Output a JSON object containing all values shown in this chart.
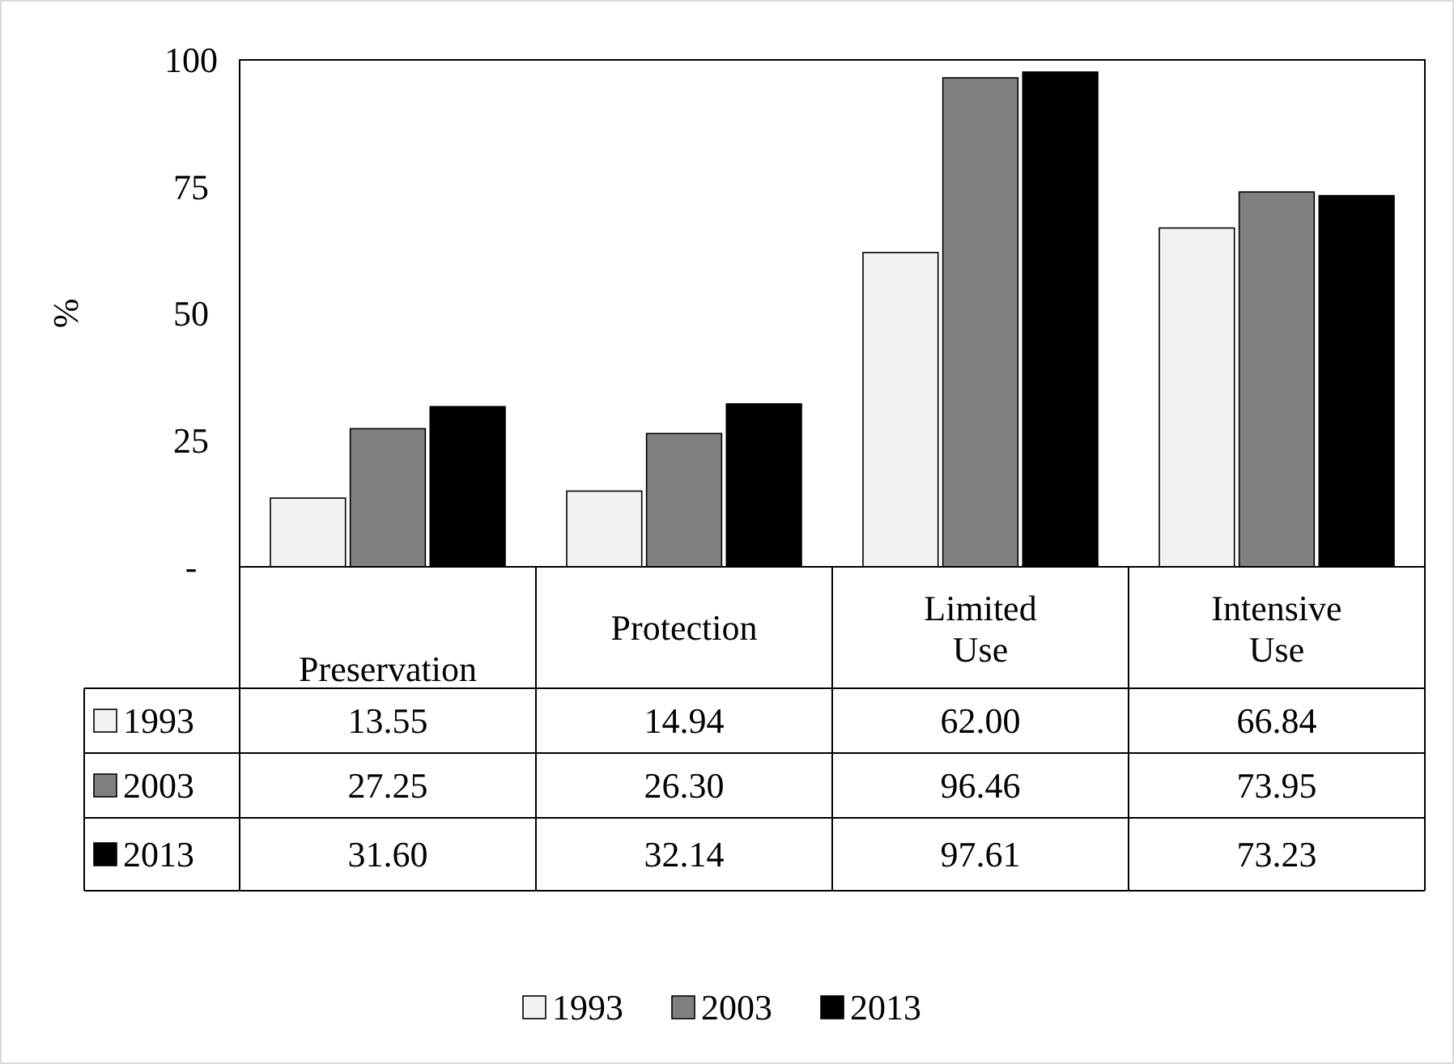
{
  "chart_data": {
    "type": "bar",
    "ylabel": "%",
    "categories": [
      "Preservation",
      "Protection",
      "Limited Use",
      "Intensive Use"
    ],
    "series": [
      {
        "name": "1993",
        "color": "#f2f2f2",
        "values": [
          13.55,
          14.94,
          62.0,
          66.84
        ],
        "value_labels": [
          "13.55",
          "14.94",
          "62.00",
          "66.84"
        ]
      },
      {
        "name": "2003",
        "color": "#808080",
        "values": [
          27.25,
          26.3,
          96.46,
          73.95
        ],
        "value_labels": [
          "27.25",
          "26.30",
          "96.46",
          "73.95"
        ]
      },
      {
        "name": "2013",
        "color": "#000000",
        "values": [
          31.6,
          32.14,
          97.61,
          73.23
        ],
        "value_labels": [
          "31.60",
          "32.14",
          "97.61",
          "73.23"
        ]
      }
    ],
    "ylim": [
      0,
      100
    ],
    "yticks": [
      {
        "value": 0,
        "label": "-"
      },
      25,
      50,
      75,
      100
    ],
    "grid": false,
    "legend": "bottom"
  }
}
